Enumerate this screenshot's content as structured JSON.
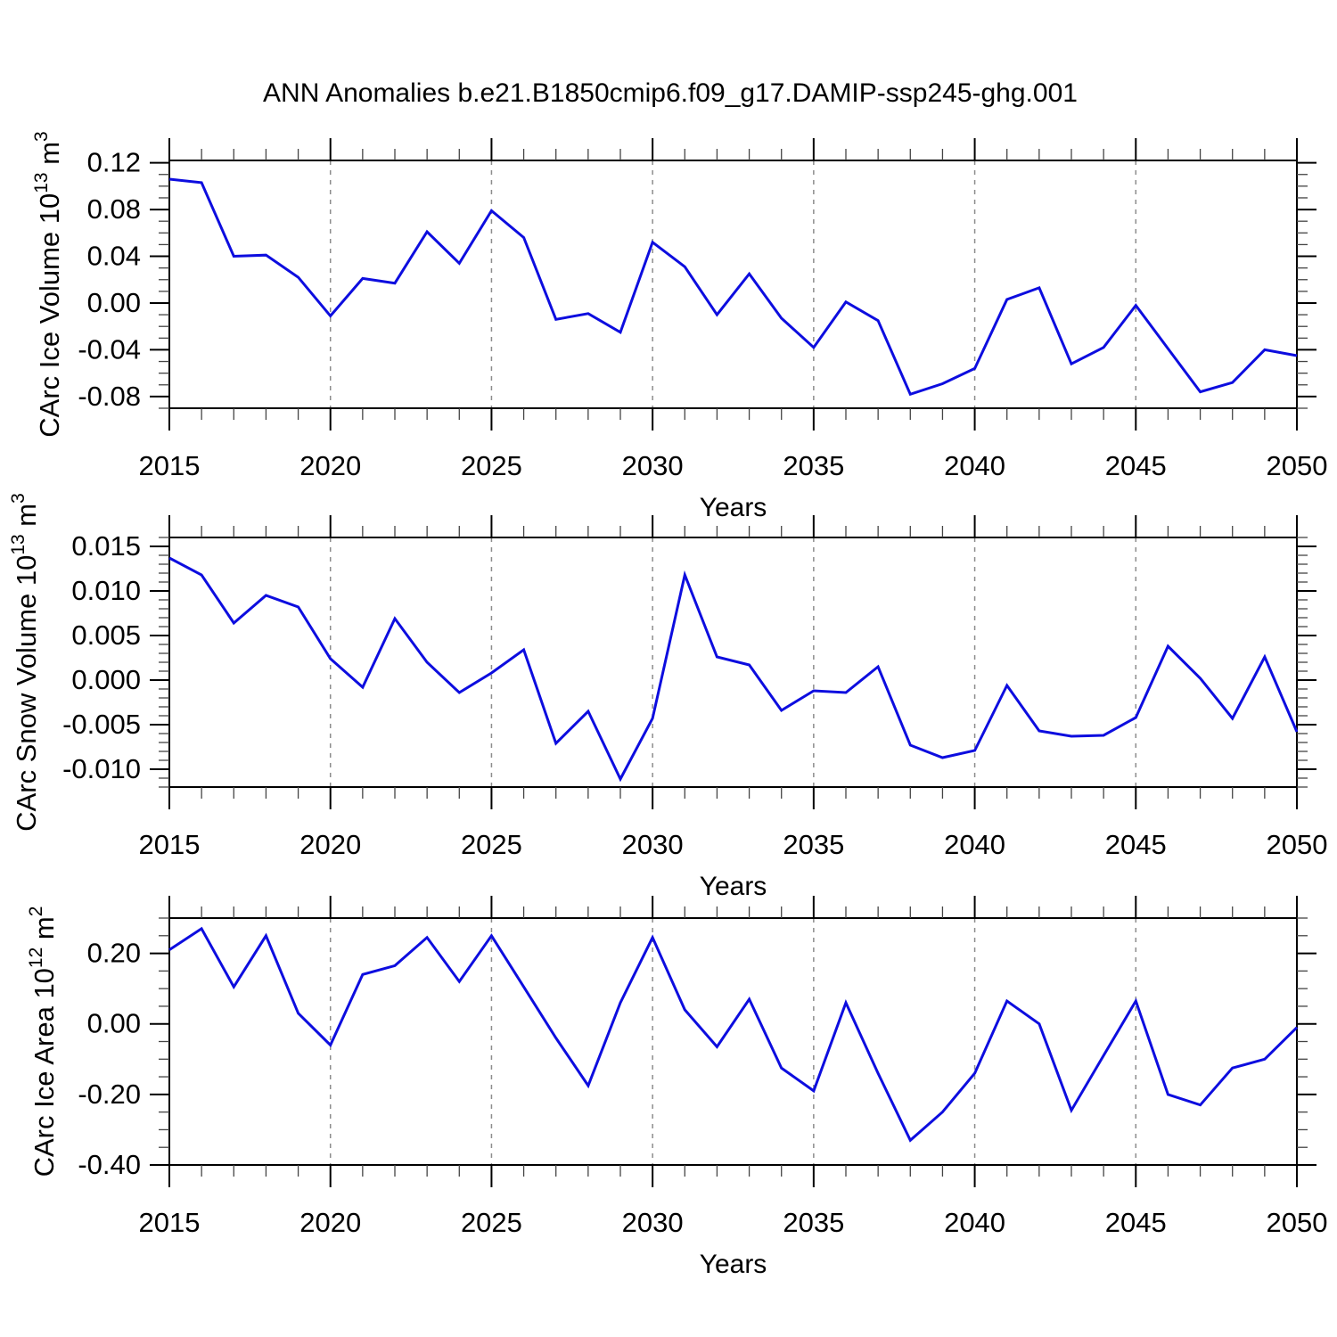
{
  "title": "ANN Anomalies b.e21.B1850cmip6.f09_g17.DAMIP-ssp245-ghg.001",
  "colors": {
    "line": "#0d0ddf",
    "grid": "#8c8c8c",
    "frame": "#000000",
    "minor_tick": "#444444"
  },
  "chart_data": [
    {
      "type": "line",
      "id": "ice-volume",
      "ylabel_parts": [
        {
          "text": "CArc Ice Volume 10"
        },
        {
          "text": "13",
          "sup": true
        },
        {
          "text": " m"
        },
        {
          "text": "3",
          "sup": true
        }
      ],
      "xlabel": "Years",
      "x": [
        2015,
        2016,
        2017,
        2018,
        2019,
        2020,
        2021,
        2022,
        2023,
        2024,
        2025,
        2026,
        2027,
        2028,
        2029,
        2030,
        2031,
        2032,
        2033,
        2034,
        2035,
        2036,
        2037,
        2038,
        2039,
        2040,
        2041,
        2042,
        2043,
        2044,
        2045,
        2046,
        2047,
        2048,
        2049,
        2050
      ],
      "values": [
        0.106,
        0.103,
        0.04,
        0.041,
        0.022,
        -0.011,
        0.021,
        0.017,
        0.061,
        0.034,
        0.079,
        0.056,
        -0.014,
        -0.009,
        -0.025,
        0.052,
        0.031,
        -0.01,
        0.025,
        -0.013,
        -0.038,
        0.001,
        -0.015,
        -0.078,
        -0.069,
        -0.056,
        0.003,
        0.013,
        -0.052,
        -0.038,
        -0.002,
        -0.039,
        -0.076,
        -0.068,
        -0.04,
        -0.045
      ],
      "xlim": [
        2015,
        2050
      ],
      "ylim": [
        -0.09,
        0.122
      ],
      "xticks": [
        2015,
        2020,
        2025,
        2030,
        2035,
        2040,
        2045,
        2050
      ],
      "xtick_labels": [
        "2015",
        "2020",
        "2025",
        "2030",
        "2035",
        "2040",
        "2045",
        "2050"
      ],
      "ytick_values": [
        0.12,
        0.08,
        0.04,
        0.0,
        -0.04,
        -0.08
      ],
      "ytick_labels": [
        "0.12",
        "0.08",
        "0.04",
        "0.00",
        "-0.04",
        "-0.08"
      ],
      "minor_y_step": 0.01,
      "grid_x": [
        2020,
        2025,
        2030,
        2035,
        2040,
        2045
      ],
      "grid_on": true,
      "legend": null
    },
    {
      "type": "line",
      "id": "snow-volume",
      "ylabel_parts": [
        {
          "text": "CArc Snow Volume 10"
        },
        {
          "text": "13",
          "sup": true
        },
        {
          "text": " m"
        },
        {
          "text": "3",
          "sup": true
        }
      ],
      "xlabel": "Years",
      "x": [
        2015,
        2016,
        2017,
        2018,
        2019,
        2020,
        2021,
        2022,
        2023,
        2024,
        2025,
        2026,
        2027,
        2028,
        2029,
        2030,
        2031,
        2032,
        2033,
        2034,
        2035,
        2036,
        2037,
        2038,
        2039,
        2040,
        2041,
        2042,
        2043,
        2044,
        2045,
        2046,
        2047,
        2048,
        2049,
        2050
      ],
      "values": [
        0.0137,
        0.0118,
        0.0064,
        0.0095,
        0.0082,
        0.0024,
        -0.0008,
        0.0069,
        0.002,
        -0.0014,
        0.0008,
        0.0034,
        -0.0071,
        -0.0035,
        -0.0111,
        -0.0043,
        0.0118,
        0.0026,
        0.0017,
        -0.0034,
        -0.0012,
        -0.0014,
        0.0015,
        -0.0073,
        -0.0087,
        -0.0079,
        -0.0006,
        -0.0057,
        -0.0063,
        -0.0062,
        -0.0042,
        0.0038,
        0.0002,
        -0.0043,
        0.0026,
        -0.0058
      ],
      "xlim": [
        2015,
        2050
      ],
      "ylim": [
        -0.012,
        0.016
      ],
      "xticks": [
        2015,
        2020,
        2025,
        2030,
        2035,
        2040,
        2045,
        2050
      ],
      "xtick_labels": [
        "2015",
        "2020",
        "2025",
        "2030",
        "2035",
        "2040",
        "2045",
        "2050"
      ],
      "ytick_values": [
        0.015,
        0.01,
        0.005,
        0.0,
        -0.005,
        -0.01
      ],
      "ytick_labels": [
        "0.015",
        "0.010",
        "0.005",
        "0.000",
        "-0.005",
        "-0.010"
      ],
      "minor_y_step": 0.001,
      "grid_x": [
        2020,
        2025,
        2030,
        2035,
        2040,
        2045
      ],
      "grid_on": true,
      "legend": null
    },
    {
      "type": "line",
      "id": "ice-area",
      "ylabel_parts": [
        {
          "text": "CArc Ice Area 10"
        },
        {
          "text": "12",
          "sup": true
        },
        {
          "text": " m"
        },
        {
          "text": "2",
          "sup": true
        }
      ],
      "xlabel": "Years",
      "x": [
        2015,
        2016,
        2017,
        2018,
        2019,
        2020,
        2021,
        2022,
        2023,
        2024,
        2025,
        2026,
        2027,
        2028,
        2029,
        2030,
        2031,
        2032,
        2033,
        2034,
        2035,
        2036,
        2037,
        2038,
        2039,
        2040,
        2041,
        2042,
        2043,
        2044,
        2045,
        2046,
        2047,
        2048,
        2049,
        2050
      ],
      "values": [
        0.21,
        0.27,
        0.105,
        0.25,
        0.03,
        -0.06,
        0.14,
        0.165,
        0.245,
        0.12,
        0.25,
        0.105,
        -0.04,
        -0.175,
        0.06,
        0.245,
        0.04,
        -0.065,
        0.07,
        -0.125,
        -0.19,
        0.06,
        -0.14,
        -0.33,
        -0.25,
        -0.14,
        0.065,
        0.0,
        -0.245,
        -0.09,
        0.065,
        -0.2,
        -0.23,
        -0.125,
        -0.1,
        -0.01
      ],
      "xlim": [
        2015,
        2050
      ],
      "ylim": [
        -0.4,
        0.3
      ],
      "xticks": [
        2015,
        2020,
        2025,
        2030,
        2035,
        2040,
        2045,
        2050
      ],
      "xtick_labels": [
        "2015",
        "2020",
        "2025",
        "2030",
        "2035",
        "2040",
        "2045",
        "2050"
      ],
      "ytick_values": [
        0.2,
        0.0,
        -0.2,
        -0.4
      ],
      "ytick_labels": [
        "0.20",
        "0.00",
        "-0.20",
        "-0.40"
      ],
      "minor_y_step": 0.05,
      "grid_x": [
        2020,
        2025,
        2030,
        2035,
        2040,
        2045
      ],
      "grid_on": true,
      "legend": null
    }
  ]
}
